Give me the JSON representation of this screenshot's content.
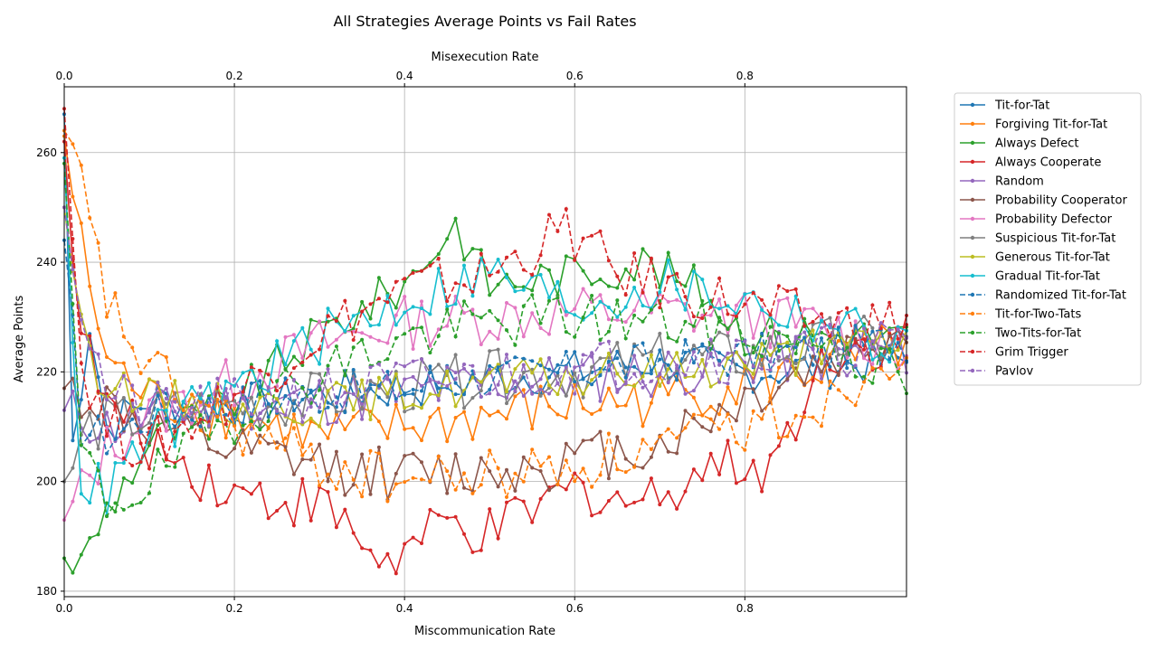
{
  "chart_data": {
    "type": "line",
    "title": "All Strategies Average Points vs Fail Rates",
    "xlabel": "Miscommunication Rate",
    "x2label": "Misexecution Rate",
    "ylabel": "Average Points",
    "xlim": [
      0,
      0.99
    ],
    "ylim": [
      179,
      272
    ],
    "xticks": [
      0.0,
      0.2,
      0.4,
      0.6,
      0.8
    ],
    "xtick_labels": [
      "0.0",
      "0.2",
      "0.4",
      "0.6",
      "0.8"
    ],
    "x2ticks": [
      0.0,
      0.2,
      0.4,
      0.6,
      0.8
    ],
    "x2tick_labels": [
      "0.0",
      "0.2",
      "0.4",
      "0.6",
      "0.8"
    ],
    "yticks": [
      180,
      200,
      220,
      240,
      260
    ],
    "ytick_labels": [
      "180",
      "200",
      "220",
      "240",
      "260"
    ],
    "grid": true,
    "legend_placement": "outside-right",
    "x": {
      "start": 0.0,
      "step": 0.01,
      "count": 100
    },
    "series": [
      {
        "name": "Tit-for-Tat",
        "color": "#1f77b4",
        "dash": "solid",
        "anchors": [
          [
            0,
            267
          ],
          [
            0.01,
            207
          ],
          [
            0.03,
            229
          ],
          [
            0.05,
            210
          ],
          [
            0.1,
            215
          ],
          [
            0.2,
            214
          ],
          [
            0.3,
            216
          ],
          [
            0.4,
            217
          ],
          [
            0.5,
            219
          ],
          [
            0.6,
            220
          ],
          [
            0.7,
            222
          ],
          [
            0.8,
            220
          ],
          [
            0.9,
            221
          ],
          [
            0.99,
            222
          ]
        ],
        "noise": 4
      },
      {
        "name": "Forgiving Tit-for-Tat",
        "color": "#ff7f0e",
        "dash": "solid",
        "anchors": [
          [
            0,
            263
          ],
          [
            0.02,
            243
          ],
          [
            0.05,
            222
          ],
          [
            0.1,
            215
          ],
          [
            0.2,
            212
          ],
          [
            0.3,
            208
          ],
          [
            0.4,
            210
          ],
          [
            0.5,
            212
          ],
          [
            0.6,
            214
          ],
          [
            0.7,
            215
          ],
          [
            0.8,
            218
          ],
          [
            0.9,
            221
          ],
          [
            0.99,
            225
          ]
        ],
        "noise": 5
      },
      {
        "name": "Always Defect",
        "color": "#2ca02c",
        "dash": "solid",
        "anchors": [
          [
            0,
            186
          ],
          [
            0.02,
            185
          ],
          [
            0.05,
            195
          ],
          [
            0.1,
            207
          ],
          [
            0.2,
            215
          ],
          [
            0.3,
            227
          ],
          [
            0.4,
            236
          ],
          [
            0.46,
            247
          ],
          [
            0.5,
            236
          ],
          [
            0.6,
            238
          ],
          [
            0.68,
            240
          ],
          [
            0.75,
            235
          ],
          [
            0.8,
            227
          ],
          [
            0.9,
            227
          ],
          [
            0.99,
            226
          ]
        ],
        "noise": 4
      },
      {
        "name": "Always Cooperate",
        "color": "#d62728",
        "dash": "solid",
        "anchors": [
          [
            0,
            262
          ],
          [
            0.02,
            227
          ],
          [
            0.05,
            214
          ],
          [
            0.1,
            207
          ],
          [
            0.2,
            198
          ],
          [
            0.3,
            196
          ],
          [
            0.38,
            185
          ],
          [
            0.45,
            192
          ],
          [
            0.5,
            190
          ],
          [
            0.6,
            199
          ],
          [
            0.68,
            196
          ],
          [
            0.75,
            203
          ],
          [
            0.83,
            203
          ],
          [
            0.9,
            224
          ],
          [
            0.99,
            226
          ]
        ],
        "noise": 5
      },
      {
        "name": "Random",
        "color": "#9467bd",
        "dash": "solid",
        "anchors": [
          [
            0,
            213
          ],
          [
            0.05,
            210
          ],
          [
            0.1,
            212
          ],
          [
            0.2,
            214
          ],
          [
            0.3,
            215
          ],
          [
            0.4,
            216
          ],
          [
            0.5,
            218
          ],
          [
            0.6,
            219
          ],
          [
            0.7,
            220
          ],
          [
            0.8,
            222
          ],
          [
            0.9,
            223
          ],
          [
            0.99,
            224
          ]
        ],
        "noise": 5
      },
      {
        "name": "Probability Cooperator",
        "color": "#8c564b",
        "dash": "solid",
        "anchors": [
          [
            0,
            217
          ],
          [
            0.05,
            214
          ],
          [
            0.1,
            210
          ],
          [
            0.2,
            205
          ],
          [
            0.3,
            203
          ],
          [
            0.4,
            201
          ],
          [
            0.5,
            202
          ],
          [
            0.6,
            204
          ],
          [
            0.7,
            207
          ],
          [
            0.8,
            215
          ],
          [
            0.9,
            222
          ],
          [
            0.99,
            228
          ]
        ],
        "noise": 5
      },
      {
        "name": "Probability Defector",
        "color": "#e377c2",
        "dash": "solid",
        "anchors": [
          [
            0,
            193
          ],
          [
            0.05,
            206
          ],
          [
            0.1,
            212
          ],
          [
            0.2,
            218
          ],
          [
            0.3,
            225
          ],
          [
            0.4,
            229
          ],
          [
            0.5,
            230
          ],
          [
            0.6,
            231
          ],
          [
            0.7,
            231
          ],
          [
            0.8,
            230
          ],
          [
            0.9,
            228
          ],
          [
            0.99,
            224
          ]
        ],
        "noise": 5
      },
      {
        "name": "Suspicious Tit-for-Tat",
        "color": "#7f7f7f",
        "dash": "solid",
        "anchors": [
          [
            0,
            200
          ],
          [
            0.03,
            210
          ],
          [
            0.1,
            212
          ],
          [
            0.2,
            214
          ],
          [
            0.3,
            215
          ],
          [
            0.4,
            217
          ],
          [
            0.5,
            219
          ],
          [
            0.6,
            220
          ],
          [
            0.7,
            222
          ],
          [
            0.8,
            223
          ],
          [
            0.9,
            225
          ],
          [
            0.99,
            226
          ]
        ],
        "noise": 5
      },
      {
        "name": "Generous Tit-for-Tat",
        "color": "#bcbd22",
        "dash": "solid",
        "anchors": [
          [
            0,
            250
          ],
          [
            0.03,
            221
          ],
          [
            0.1,
            215
          ],
          [
            0.2,
            214
          ],
          [
            0.3,
            214
          ],
          [
            0.4,
            216
          ],
          [
            0.5,
            218
          ],
          [
            0.6,
            219
          ],
          [
            0.7,
            220
          ],
          [
            0.8,
            222
          ],
          [
            0.9,
            224
          ],
          [
            0.99,
            226
          ]
        ],
        "noise": 4
      },
      {
        "name": "Gradual Tit-for-Tat",
        "color": "#17becf",
        "dash": "solid",
        "anchors": [
          [
            0,
            259
          ],
          [
            0.02,
            200
          ],
          [
            0.05,
            198
          ],
          [
            0.1,
            208
          ],
          [
            0.2,
            217
          ],
          [
            0.3,
            226
          ],
          [
            0.4,
            233
          ],
          [
            0.5,
            238
          ],
          [
            0.6,
            232
          ],
          [
            0.7,
            236
          ],
          [
            0.8,
            233
          ],
          [
            0.9,
            229
          ],
          [
            0.99,
            224
          ]
        ],
        "noise": 5
      },
      {
        "name": "Randomized Tit-for-Tat",
        "color": "#1f77b4",
        "dash": "dashed",
        "anchors": [
          [
            0,
            244
          ],
          [
            0.02,
            210
          ],
          [
            0.05,
            208
          ],
          [
            0.1,
            212
          ],
          [
            0.2,
            214
          ],
          [
            0.3,
            216
          ],
          [
            0.4,
            217
          ],
          [
            0.5,
            219
          ],
          [
            0.6,
            220
          ],
          [
            0.7,
            222
          ],
          [
            0.8,
            223
          ],
          [
            0.9,
            224
          ],
          [
            0.99,
            226
          ]
        ],
        "noise": 4
      },
      {
        "name": "Tit-for-Two-Tats",
        "color": "#ff7f0e",
        "dash": "dashed",
        "anchors": [
          [
            0,
            264
          ],
          [
            0.02,
            254
          ],
          [
            0.05,
            233
          ],
          [
            0.1,
            220
          ],
          [
            0.2,
            210
          ],
          [
            0.3,
            203
          ],
          [
            0.4,
            200
          ],
          [
            0.5,
            201
          ],
          [
            0.6,
            203
          ],
          [
            0.7,
            206
          ],
          [
            0.8,
            210
          ],
          [
            0.9,
            215
          ],
          [
            0.99,
            226
          ]
        ],
        "noise": 5
      },
      {
        "name": "Two-Tits-for-Tat",
        "color": "#2ca02c",
        "dash": "dashed",
        "anchors": [
          [
            0,
            258
          ],
          [
            0.02,
            205
          ],
          [
            0.05,
            196
          ],
          [
            0.1,
            200
          ],
          [
            0.2,
            212
          ],
          [
            0.3,
            220
          ],
          [
            0.4,
            226
          ],
          [
            0.5,
            229
          ],
          [
            0.6,
            230
          ],
          [
            0.7,
            229
          ],
          [
            0.8,
            227
          ],
          [
            0.9,
            226
          ],
          [
            0.99,
            218
          ]
        ],
        "noise": 5
      },
      {
        "name": "Grim Trigger",
        "color": "#d62728",
        "dash": "dashed",
        "anchors": [
          [
            0,
            268
          ],
          [
            0.02,
            222
          ],
          [
            0.05,
            210
          ],
          [
            0.1,
            206
          ],
          [
            0.2,
            216
          ],
          [
            0.3,
            227
          ],
          [
            0.4,
            235
          ],
          [
            0.5,
            238
          ],
          [
            0.59,
            246
          ],
          [
            0.65,
            238
          ],
          [
            0.7,
            236
          ],
          [
            0.8,
            232
          ],
          [
            0.9,
            229
          ],
          [
            0.99,
            229
          ]
        ],
        "noise": 5
      },
      {
        "name": "Pavlov",
        "color": "#9467bd",
        "dash": "dashed",
        "anchors": [
          [
            0,
            250
          ],
          [
            0.02,
            232
          ],
          [
            0.05,
            216
          ],
          [
            0.1,
            213
          ],
          [
            0.2,
            214
          ],
          [
            0.3,
            216
          ],
          [
            0.4,
            218
          ],
          [
            0.5,
            219
          ],
          [
            0.6,
            221
          ],
          [
            0.7,
            222
          ],
          [
            0.8,
            223
          ],
          [
            0.9,
            224
          ],
          [
            0.99,
            225
          ]
        ],
        "noise": 5
      }
    ]
  }
}
